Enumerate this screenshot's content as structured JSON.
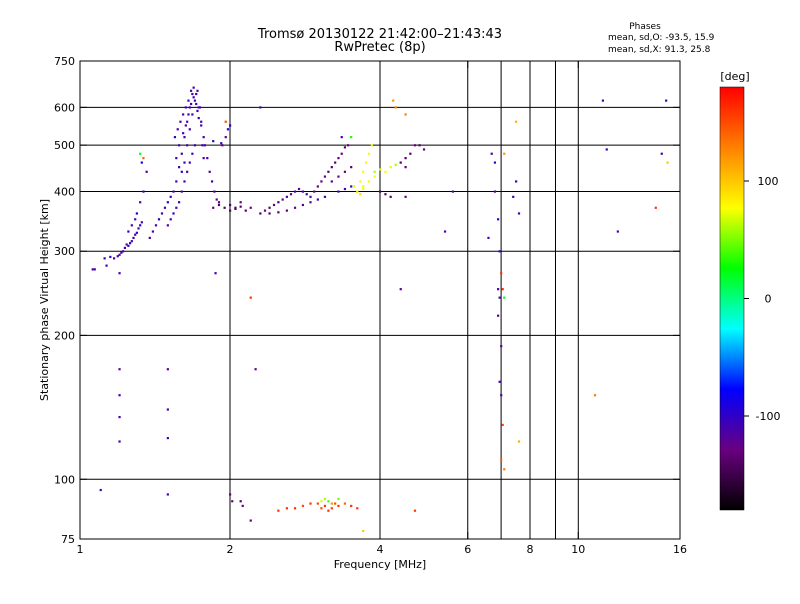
{
  "chart_data": {
    "type": "scatter",
    "title": "Tromsø 20130122 21:42:00–21:43:43",
    "subtitle": "RwPretec (8p)",
    "xlabel": "Frequency [MHz]",
    "ylabel": "Stationary phase Virtual Height [km]",
    "xscale": "log",
    "yscale": "log",
    "xlim": [
      1,
      16
    ],
    "ylim": [
      75,
      750
    ],
    "xticks": [
      1,
      2,
      4,
      6,
      8,
      10,
      16
    ],
    "xtick_labels": [
      "1",
      "2",
      "4",
      "6",
      "8",
      "10",
      "16"
    ],
    "yticks": [
      75,
      100,
      200,
      300,
      400,
      500,
      600,
      750
    ],
    "ytick_labels": [
      "75",
      "100",
      "200",
      "300",
      "400",
      "500",
      "600",
      "750"
    ],
    "xgrid": [
      2,
      4,
      6,
      7,
      8,
      9,
      10
    ],
    "ygrid": [
      100,
      200,
      300,
      400,
      500,
      600
    ],
    "grid": true,
    "colorbar": {
      "label": "[deg]",
      "range": [
        -180,
        180
      ],
      "ticks": [
        100,
        0,
        -100
      ],
      "tick_labels": [
        "100",
        "0",
        "-100"
      ],
      "stops": [
        "#000000",
        "#6a0080",
        "#0000ff",
        "#00ffff",
        "#00ff00",
        "#ffff00",
        "#ff8000",
        "#ff0000"
      ]
    },
    "phases": {
      "title": "Phases",
      "o_label": "mean, sd,O: -93.5, 15.9",
      "x_label": "mean, sd,X:  91.3, 25.8"
    },
    "points": [
      [
        1.06,
        275,
        -110
      ],
      [
        1.07,
        275,
        -110
      ],
      [
        1.12,
        290,
        -110
      ],
      [
        1.13,
        280,
        -110
      ],
      [
        1.15,
        292,
        -100
      ],
      [
        1.17,
        290,
        -110
      ],
      [
        1.19,
        293,
        -110
      ],
      [
        1.2,
        295,
        -120
      ],
      [
        1.21,
        298,
        -115
      ],
      [
        1.22,
        300,
        -110
      ],
      [
        1.23,
        305,
        -110
      ],
      [
        1.24,
        310,
        -120
      ],
      [
        1.25,
        308,
        -110
      ],
      [
        1.26,
        312,
        -100
      ],
      [
        1.27,
        315,
        -110
      ],
      [
        1.28,
        320,
        -110
      ],
      [
        1.29,
        325,
        -110
      ],
      [
        1.3,
        328,
        -100
      ],
      [
        1.31,
        335,
        -110
      ],
      [
        1.32,
        340,
        -100
      ],
      [
        1.33,
        345,
        -110
      ],
      [
        1.25,
        330,
        -100
      ],
      [
        1.27,
        340,
        -110
      ],
      [
        1.29,
        350,
        -110
      ],
      [
        1.3,
        360,
        -90
      ],
      [
        1.32,
        380,
        -110
      ],
      [
        1.34,
        400,
        -110
      ],
      [
        1.36,
        440,
        -110
      ],
      [
        1.33,
        460,
        -90
      ],
      [
        1.32,
        480,
        20
      ],
      [
        1.34,
        470,
        140
      ],
      [
        1.38,
        320,
        -110
      ],
      [
        1.4,
        330,
        -110
      ],
      [
        1.42,
        340,
        -110
      ],
      [
        1.44,
        350,
        -100
      ],
      [
        1.46,
        360,
        -110
      ],
      [
        1.48,
        370,
        -110
      ],
      [
        1.5,
        380,
        -100
      ],
      [
        1.52,
        390,
        -110
      ],
      [
        1.54,
        400,
        -110
      ],
      [
        1.56,
        420,
        -110
      ],
      [
        1.58,
        450,
        -110
      ],
      [
        1.6,
        480,
        -110
      ],
      [
        1.62,
        520,
        -110
      ],
      [
        1.64,
        560,
        -110
      ],
      [
        1.66,
        600,
        -110
      ],
      [
        1.68,
        640,
        -110
      ],
      [
        1.5,
        340,
        -110
      ],
      [
        1.52,
        350,
        -110
      ],
      [
        1.54,
        360,
        -100
      ],
      [
        1.56,
        370,
        -110
      ],
      [
        1.58,
        380,
        -110
      ],
      [
        1.6,
        400,
        -120
      ],
      [
        1.62,
        420,
        -110
      ],
      [
        1.64,
        440,
        -110
      ],
      [
        1.66,
        460,
        -110
      ],
      [
        1.68,
        480,
        -110
      ],
      [
        1.7,
        500,
        -110
      ],
      [
        1.55,
        520,
        -100
      ],
      [
        1.57,
        540,
        -110
      ],
      [
        1.59,
        560,
        -110
      ],
      [
        1.61,
        580,
        -110
      ],
      [
        1.63,
        600,
        -110
      ],
      [
        1.65,
        620,
        -110
      ],
      [
        1.67,
        650,
        -110
      ],
      [
        1.69,
        630,
        -110
      ],
      [
        1.71,
        610,
        -110
      ],
      [
        1.72,
        590,
        -110
      ],
      [
        1.73,
        570,
        -110
      ],
      [
        1.6,
        440,
        -100
      ],
      [
        1.62,
        460,
        -110
      ],
      [
        1.64,
        500,
        -110
      ],
      [
        1.66,
        540,
        -110
      ],
      [
        1.68,
        580,
        -110
      ],
      [
        1.7,
        620,
        -110
      ],
      [
        1.72,
        650,
        -120
      ],
      [
        1.74,
        600,
        -110
      ],
      [
        1.75,
        550,
        -110
      ],
      [
        1.76,
        500,
        -110
      ],
      [
        1.77,
        470,
        -110
      ],
      [
        1.56,
        470,
        -110
      ],
      [
        1.58,
        500,
        -110
      ],
      [
        1.61,
        530,
        -110
      ],
      [
        1.63,
        550,
        -110
      ],
      [
        1.65,
        580,
        -110
      ],
      [
        1.67,
        610,
        -110
      ],
      [
        1.69,
        660,
        -110
      ],
      [
        1.71,
        640,
        -110
      ],
      [
        1.73,
        600,
        -110
      ],
      [
        1.75,
        560,
        -110
      ],
      [
        1.77,
        520,
        -110
      ],
      [
        1.78,
        500,
        -110
      ],
      [
        1.8,
        470,
        -110
      ],
      [
        1.82,
        440,
        -110
      ],
      [
        1.84,
        420,
        -110
      ],
      [
        1.86,
        400,
        -120
      ],
      [
        1.88,
        385,
        -130
      ],
      [
        1.9,
        380,
        -130
      ],
      [
        1.85,
        370,
        -130
      ],
      [
        1.9,
        375,
        -140
      ],
      [
        1.95,
        370,
        -140
      ],
      [
        2.0,
        375,
        -140
      ],
      [
        2.05,
        370,
        -140
      ],
      [
        2.1,
        380,
        -130
      ],
      [
        2.0,
        365,
        -140
      ],
      [
        2.05,
        368,
        -140
      ],
      [
        2.1,
        372,
        -140
      ],
      [
        2.15,
        365,
        -140
      ],
      [
        2.2,
        370,
        -130
      ],
      [
        1.93,
        500,
        -130
      ],
      [
        1.96,
        520,
        -130
      ],
      [
        1.98,
        540,
        -100
      ],
      [
        1.96,
        560,
        150
      ],
      [
        1.92,
        505,
        -100
      ],
      [
        1.85,
        510,
        -100
      ],
      [
        2.0,
        550,
        -100
      ],
      [
        2.3,
        600,
        -110
      ],
      [
        1.87,
        270,
        -110
      ],
      [
        2.2,
        240,
        160
      ],
      [
        2.25,
        170,
        -120
      ],
      [
        2.3,
        360,
        -140
      ],
      [
        2.35,
        365,
        -130
      ],
      [
        2.4,
        370,
        -140
      ],
      [
        2.45,
        375,
        -130
      ],
      [
        2.5,
        380,
        -140
      ],
      [
        2.55,
        385,
        -130
      ],
      [
        2.6,
        390,
        -120
      ],
      [
        2.65,
        395,
        -130
      ],
      [
        2.7,
        400,
        -110
      ],
      [
        2.75,
        405,
        -120
      ],
      [
        2.8,
        400,
        -110
      ],
      [
        2.85,
        395,
        -110
      ],
      [
        2.9,
        390,
        -110
      ],
      [
        2.4,
        360,
        -140
      ],
      [
        2.5,
        362,
        -140
      ],
      [
        2.6,
        365,
        -130
      ],
      [
        2.7,
        370,
        -130
      ],
      [
        2.8,
        375,
        -120
      ],
      [
        2.9,
        380,
        -120
      ],
      [
        3.0,
        385,
        -110
      ],
      [
        3.1,
        390,
        -110
      ],
      [
        2.95,
        400,
        -130
      ],
      [
        3.0,
        410,
        -130
      ],
      [
        3.05,
        420,
        -130
      ],
      [
        3.1,
        430,
        -130
      ],
      [
        3.15,
        440,
        -140
      ],
      [
        3.2,
        450,
        -140
      ],
      [
        3.25,
        460,
        -140
      ],
      [
        3.3,
        470,
        -130
      ],
      [
        3.35,
        480,
        -130
      ],
      [
        3.4,
        495,
        -140
      ],
      [
        3.45,
        500,
        -130
      ],
      [
        3.2,
        420,
        -120
      ],
      [
        3.3,
        430,
        -130
      ],
      [
        3.4,
        440,
        -130
      ],
      [
        3.5,
        450,
        -140
      ],
      [
        3.3,
        400,
        -110
      ],
      [
        3.4,
        405,
        -110
      ],
      [
        3.5,
        410,
        -110
      ],
      [
        3.6,
        400,
        80
      ],
      [
        3.65,
        420,
        80
      ],
      [
        3.7,
        440,
        80
      ],
      [
        3.75,
        460,
        80
      ],
      [
        3.8,
        480,
        80
      ],
      [
        3.85,
        500,
        70
      ],
      [
        3.7,
        410,
        70
      ],
      [
        3.8,
        420,
        80
      ],
      [
        3.9,
        430,
        80
      ],
      [
        3.6,
        400,
        90
      ],
      [
        3.65,
        395,
        90
      ],
      [
        3.7,
        405,
        80
      ],
      [
        3.55,
        410,
        70
      ],
      [
        3.9,
        440,
        60
      ],
      [
        4.0,
        445,
        70
      ],
      [
        4.1,
        440,
        80
      ],
      [
        4.2,
        450,
        70
      ],
      [
        4.3,
        455,
        60
      ],
      [
        4.4,
        460,
        -140
      ],
      [
        4.5,
        470,
        -140
      ],
      [
        4.6,
        480,
        -140
      ],
      [
        4.7,
        500,
        -130
      ],
      [
        4.8,
        500,
        -140
      ],
      [
        4.9,
        490,
        -130
      ],
      [
        3.35,
        520,
        -110
      ],
      [
        3.5,
        520,
        30
      ],
      [
        4.25,
        620,
        120
      ],
      [
        4.3,
        600,
        130
      ],
      [
        4.5,
        580,
        130
      ],
      [
        4.5,
        450,
        -130
      ],
      [
        4.0,
        400,
        -140
      ],
      [
        4.1,
        395,
        -140
      ],
      [
        4.2,
        390,
        -140
      ],
      [
        4.5,
        390,
        -130
      ],
      [
        4.4,
        250,
        -120
      ],
      [
        5.6,
        400,
        -120
      ],
      [
        5.4,
        330,
        -110
      ],
      [
        6.8,
        400,
        -120
      ],
      [
        6.9,
        350,
        -100
      ],
      [
        6.6,
        320,
        -110
      ],
      [
        7.1,
        480,
        120
      ],
      [
        6.7,
        480,
        -110
      ],
      [
        6.8,
        460,
        -100
      ],
      [
        7.5,
        420,
        -110
      ],
      [
        7.4,
        390,
        -110
      ],
      [
        7.6,
        360,
        -110
      ],
      [
        7.5,
        560,
        110
      ],
      [
        7.6,
        120,
        110
      ],
      [
        6.95,
        300,
        -100
      ],
      [
        7.0,
        270,
        160
      ],
      [
        7.05,
        250,
        160
      ],
      [
        7.1,
        240,
        20
      ],
      [
        6.9,
        250,
        -110
      ],
      [
        6.95,
        240,
        -110
      ],
      [
        6.9,
        220,
        -120
      ],
      [
        7.0,
        190,
        -120
      ],
      [
        6.95,
        160,
        -110
      ],
      [
        7.0,
        150,
        -110
      ],
      [
        7.05,
        130,
        150
      ],
      [
        7.0,
        110,
        140
      ],
      [
        7.1,
        105,
        130
      ],
      [
        11.2,
        620,
        -110
      ],
      [
        11.4,
        490,
        -110
      ],
      [
        12.0,
        330,
        -110
      ],
      [
        10.8,
        150,
        130
      ],
      [
        15.0,
        620,
        -110
      ],
      [
        14.7,
        480,
        -110
      ],
      [
        14.3,
        370,
        160
      ],
      [
        15.1,
        460,
        100
      ],
      [
        1.2,
        270,
        -110
      ],
      [
        1.2,
        170,
        -120
      ],
      [
        1.2,
        150,
        -110
      ],
      [
        1.2,
        135,
        -110
      ],
      [
        1.2,
        120,
        -110
      ],
      [
        1.1,
        95,
        -110
      ],
      [
        1.5,
        170,
        -120
      ],
      [
        1.5,
        140,
        -110
      ],
      [
        1.5,
        122,
        -110
      ],
      [
        1.5,
        93,
        -110
      ],
      [
        2.0,
        93,
        -130
      ],
      [
        2.02,
        90,
        -130
      ],
      [
        2.1,
        90,
        -140
      ],
      [
        2.12,
        88,
        -130
      ],
      [
        2.2,
        82,
        -130
      ],
      [
        2.5,
        86,
        160
      ],
      [
        2.6,
        87,
        160
      ],
      [
        2.7,
        87,
        160
      ],
      [
        2.8,
        88,
        150
      ],
      [
        2.9,
        89,
        160
      ],
      [
        3.0,
        89,
        150
      ],
      [
        3.05,
        87,
        150
      ],
      [
        3.1,
        88,
        160
      ],
      [
        3.15,
        86,
        160
      ],
      [
        3.2,
        87,
        160
      ],
      [
        3.25,
        89,
        150
      ],
      [
        3.3,
        88,
        160
      ],
      [
        3.4,
        89,
        140
      ],
      [
        3.5,
        88,
        160
      ],
      [
        3.6,
        87,
        160
      ],
      [
        3.05,
        90,
        70
      ],
      [
        3.1,
        91,
        60
      ],
      [
        3.15,
        90,
        40
      ],
      [
        3.2,
        89,
        120
      ],
      [
        3.3,
        91,
        50
      ],
      [
        3.7,
        78,
        100
      ],
      [
        4.7,
        86,
        160
      ]
    ]
  }
}
